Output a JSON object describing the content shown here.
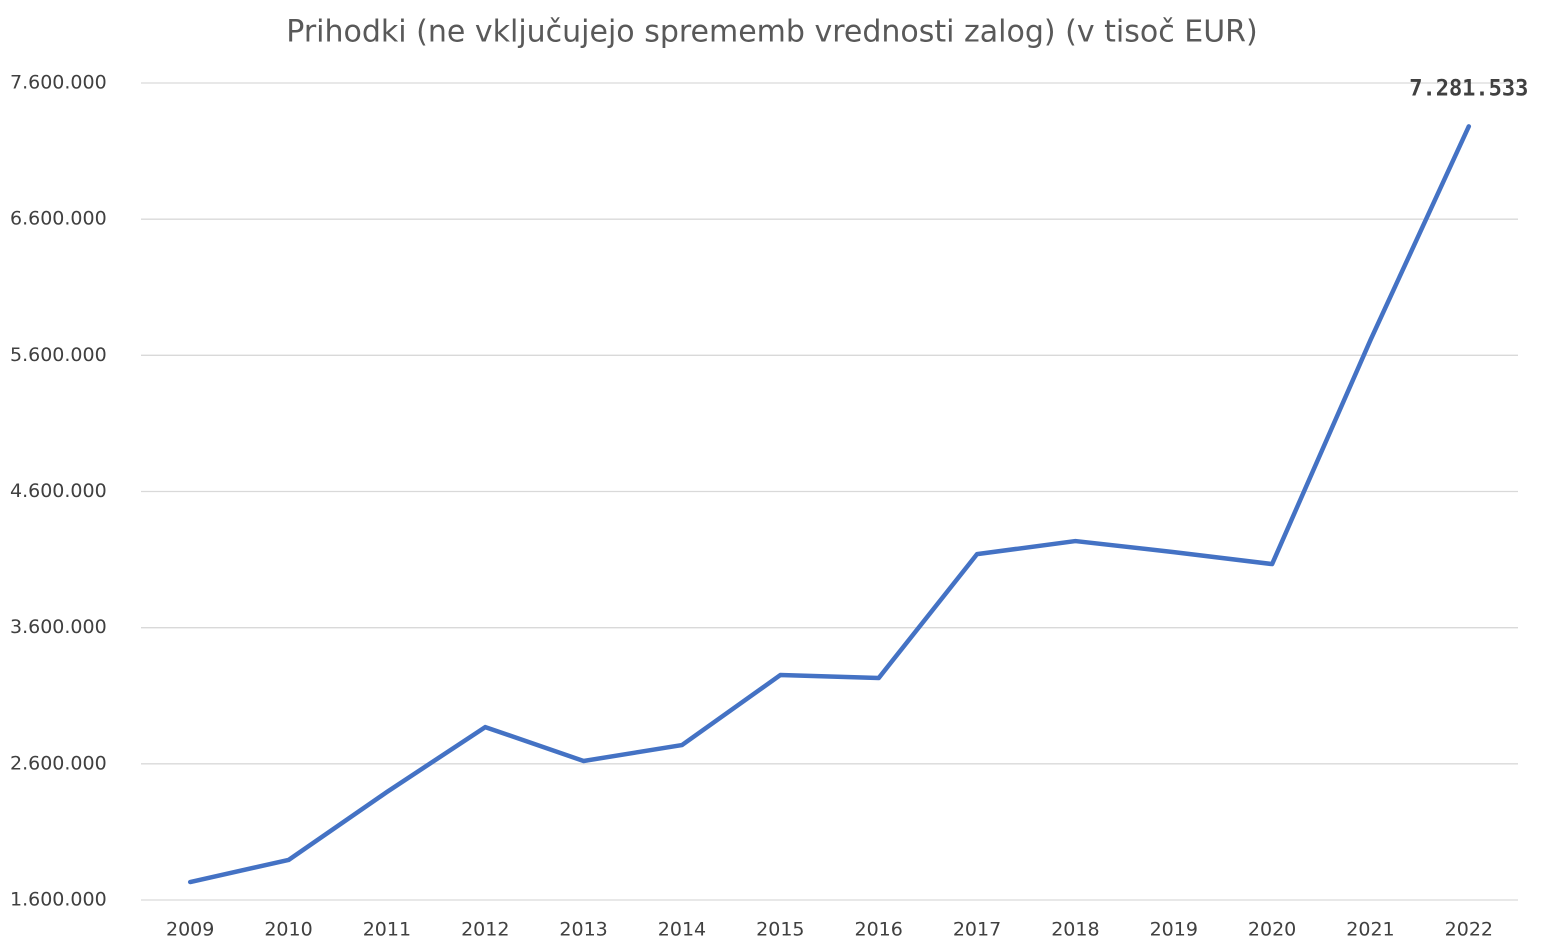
{
  "chart_data": {
    "type": "line",
    "title": "Prihodki (ne vključujejo sprememb vrednosti zalog) (v tisoč EUR)",
    "categories": [
      "2009",
      "2010",
      "2011",
      "2012",
      "2013",
      "2014",
      "2015",
      "2016",
      "2017",
      "2018",
      "2019",
      "2020",
      "2021",
      "2022"
    ],
    "series": [
      {
        "name": "Prihodki",
        "color": "#4472c4",
        "values": [
          1732000,
          1894000,
          2393000,
          2870000,
          2621000,
          2738000,
          3252000,
          3230000,
          4140000,
          4236000,
          4155000,
          4067000,
          5712000,
          7281533
        ],
        "value_labels": [
          null,
          null,
          null,
          null,
          null,
          null,
          null,
          null,
          null,
          null,
          null,
          null,
          null,
          "7.281.533"
        ]
      }
    ],
    "ylim": [
      1600000,
      7600000
    ],
    "yticks": [
      {
        "value": 1600000,
        "label": "1.600.000"
      },
      {
        "value": 2600000,
        "label": "2.600.000"
      },
      {
        "value": 3600000,
        "label": "3.600.000"
      },
      {
        "value": 4600000,
        "label": "4.600.000"
      },
      {
        "value": 5600000,
        "label": "5.600.000"
      },
      {
        "value": 6600000,
        "label": "6.600.000"
      },
      {
        "value": 7600000,
        "label": "7.600.000"
      }
    ],
    "grid": true
  }
}
